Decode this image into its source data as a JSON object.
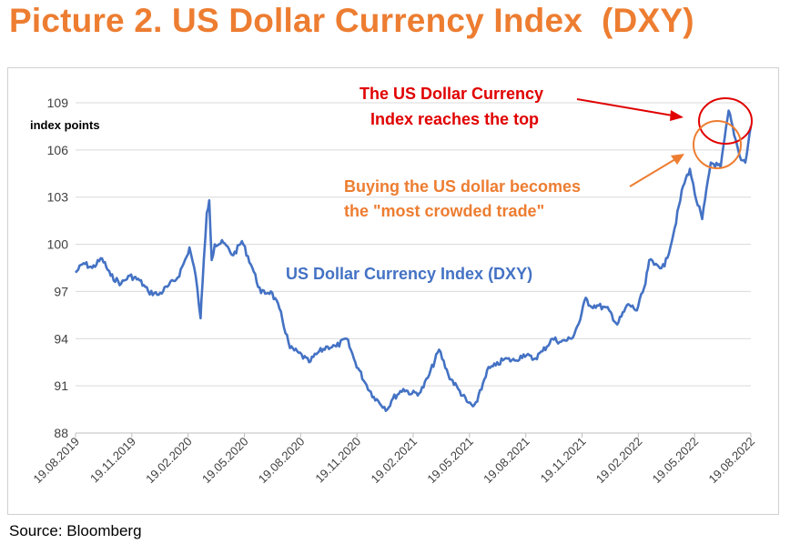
{
  "title": "Picture 2. US Dollar Currency Index  (DXY)",
  "source": "Source: Bloomberg",
  "colors": {
    "title": "#ED7D31",
    "line": "#4472C4",
    "red": "#E00000",
    "orange": "#ED7D31",
    "grid": "#d9d9d9",
    "tick_text": "#404040"
  },
  "chart_data": {
    "type": "line",
    "ylabel": "index points",
    "ylim": [
      88,
      109
    ],
    "yticks": [
      "109",
      "106",
      "103",
      "100",
      "97",
      "94",
      "91",
      "88"
    ],
    "ytick_values": [
      109,
      106,
      103,
      100,
      97,
      94,
      91,
      88
    ],
    "xlim": [
      "2019-08-19",
      "2022-08-19"
    ],
    "xticks": [
      "19.08.2019",
      "19.11.2019",
      "19.02.2020",
      "19.05.2020",
      "19.08.2020",
      "19.11.2020",
      "19.02.2021",
      "19.05.2021",
      "19.08.2021",
      "19.11.2021",
      "19.02.2022",
      "19.05.2022",
      "19.08.2022"
    ],
    "grid": "horizontal",
    "series": [
      {
        "name": "US Dollar Currency Index (DXY)",
        "x": [
          "2019-08-19",
          "2019-09-01",
          "2019-09-15",
          "2019-10-01",
          "2019-10-15",
          "2019-11-01",
          "2019-11-15",
          "2019-12-01",
          "2019-12-15",
          "2020-01-01",
          "2020-01-15",
          "2020-02-01",
          "2020-02-15",
          "2020-02-20",
          "2020-03-01",
          "2020-03-09",
          "2020-03-12",
          "2020-03-19",
          "2020-03-23",
          "2020-03-27",
          "2020-04-01",
          "2020-04-15",
          "2020-05-01",
          "2020-05-15",
          "2020-06-01",
          "2020-06-15",
          "2020-07-01",
          "2020-07-15",
          "2020-08-01",
          "2020-08-15",
          "2020-09-01",
          "2020-09-15",
          "2020-10-01",
          "2020-10-15",
          "2020-11-01",
          "2020-11-15",
          "2020-12-01",
          "2020-12-15",
          "2021-01-06",
          "2021-01-15",
          "2021-02-01",
          "2021-02-15",
          "2021-03-01",
          "2021-03-15",
          "2021-03-31",
          "2021-04-15",
          "2021-05-01",
          "2021-05-15",
          "2021-05-25",
          "2021-06-01",
          "2021-06-17",
          "2021-07-01",
          "2021-07-15",
          "2021-08-01",
          "2021-08-15",
          "2021-09-01",
          "2021-09-15",
          "2021-10-01",
          "2021-10-15",
          "2021-11-01",
          "2021-11-15",
          "2021-11-24",
          "2021-12-01",
          "2021-12-15",
          "2022-01-01",
          "2022-01-14",
          "2022-02-01",
          "2022-02-15",
          "2022-03-01",
          "2022-03-07",
          "2022-03-15",
          "2022-04-01",
          "2022-04-15",
          "2022-05-01",
          "2022-05-12",
          "2022-05-20",
          "2022-06-01",
          "2022-06-15",
          "2022-07-01",
          "2022-07-14",
          "2022-07-25",
          "2022-08-01",
          "2022-08-10",
          "2022-08-19"
        ],
        "values": [
          98.2,
          98.8,
          98.5,
          99.1,
          98.0,
          97.5,
          98.0,
          97.7,
          97.0,
          96.8,
          97.3,
          97.9,
          99.2,
          99.8,
          98.0,
          95.3,
          97.5,
          102.0,
          102.8,
          99.0,
          100.0,
          100.1,
          99.3,
          100.2,
          98.5,
          96.9,
          97.0,
          95.9,
          93.4,
          93.1,
          92.5,
          93.1,
          93.5,
          93.5,
          94.0,
          92.5,
          91.2,
          90.3,
          89.5,
          90.2,
          90.8,
          90.5,
          90.6,
          91.7,
          93.3,
          91.7,
          90.8,
          90.0,
          89.7,
          90.0,
          92.0,
          92.3,
          92.7,
          92.6,
          93.0,
          92.7,
          93.2,
          94.0,
          93.8,
          94.0,
          95.2,
          96.6,
          96.1,
          96.1,
          95.8,
          94.9,
          96.2,
          95.8,
          97.5,
          99.0,
          98.7,
          98.6,
          100.6,
          103.7,
          104.8,
          103.2,
          101.6,
          105.2,
          104.9,
          108.5,
          106.7,
          105.6,
          105.2,
          107.5
        ]
      }
    ],
    "annotations": [
      {
        "text_lines": [
          "The US Dollar Currency",
          "Index reaches the top"
        ],
        "color": "red"
      },
      {
        "text_lines": [
          "Buying the US dollar becomes",
          "the \"most crowded trade\""
        ],
        "color": "orange"
      },
      {
        "text": "US Dollar Currency Index (DXY)",
        "color": "blue"
      }
    ]
  }
}
